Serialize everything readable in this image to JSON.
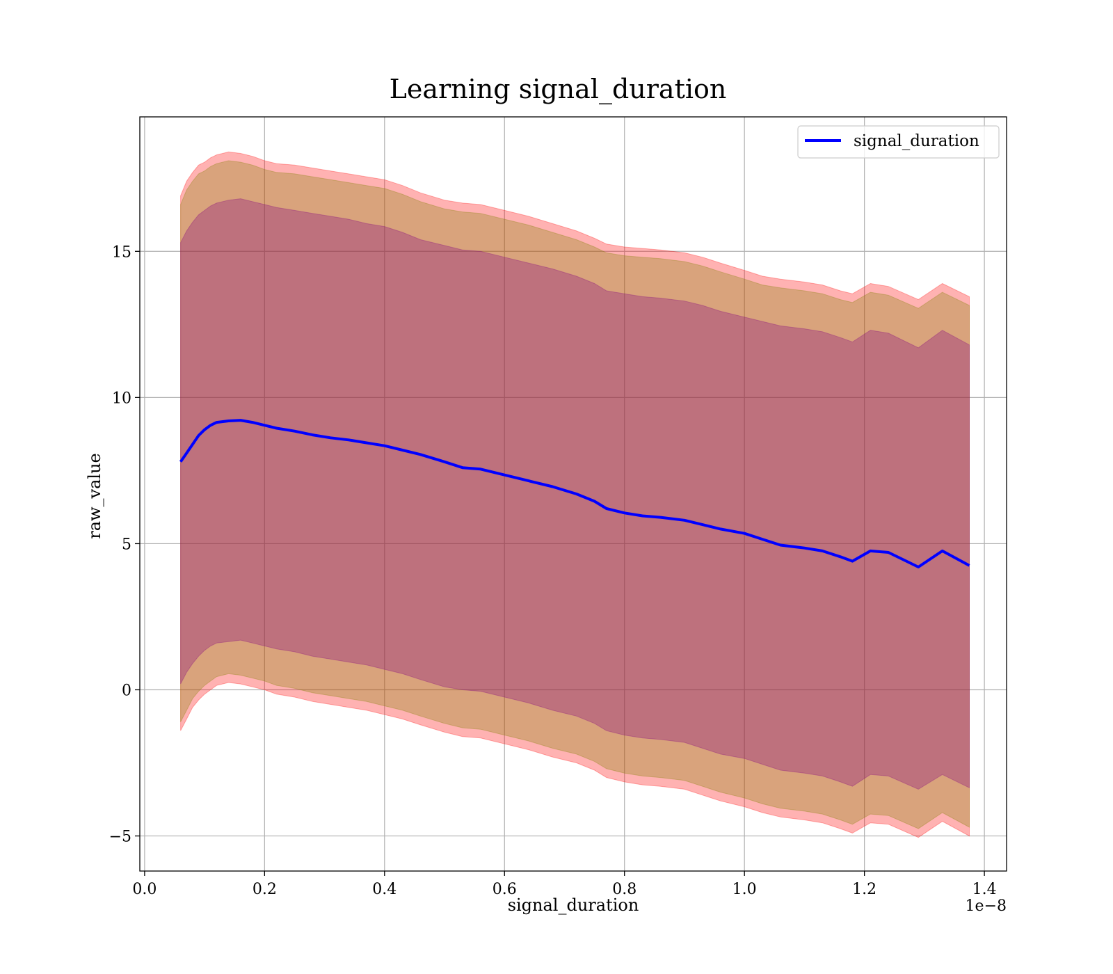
{
  "chart_data": {
    "type": "area",
    "title": "Learning signal_duration",
    "xlabel": "signal_duration",
    "ylabel": "raw_value",
    "x_offset_label": "1e−8",
    "xlim": [
      -0.008,
      1.437
    ],
    "ylim": [
      -6.2,
      19.6
    ],
    "grid": true,
    "legend_position": "top-right",
    "x_ticks": [
      {
        "value": 0.0,
        "label": "0.0"
      },
      {
        "value": 0.2,
        "label": "0.2"
      },
      {
        "value": 0.4,
        "label": "0.4"
      },
      {
        "value": 0.6,
        "label": "0.6"
      },
      {
        "value": 0.8,
        "label": "0.8"
      },
      {
        "value": 1.0,
        "label": "1.0"
      },
      {
        "value": 1.2,
        "label": "1.2"
      },
      {
        "value": 1.4,
        "label": "1.4"
      }
    ],
    "y_ticks": [
      {
        "value": -5,
        "label": "−5"
      },
      {
        "value": 0,
        "label": "0"
      },
      {
        "value": 5,
        "label": "5"
      },
      {
        "value": 10,
        "label": "10"
      },
      {
        "value": 15,
        "label": "15"
      }
    ],
    "x": [
      0.06,
      0.07,
      0.08,
      0.09,
      0.1,
      0.11,
      0.12,
      0.14,
      0.16,
      0.18,
      0.2,
      0.22,
      0.25,
      0.28,
      0.31,
      0.34,
      0.37,
      0.4,
      0.43,
      0.46,
      0.5,
      0.53,
      0.56,
      0.6,
      0.64,
      0.68,
      0.72,
      0.75,
      0.77,
      0.8,
      0.83,
      0.86,
      0.9,
      0.93,
      0.96,
      1.0,
      1.03,
      1.06,
      1.1,
      1.13,
      1.16,
      1.18,
      1.21,
      1.24,
      1.29,
      1.33,
      1.375
    ],
    "series": [
      {
        "name": "signal_duration",
        "color": "#0000ff",
        "values": [
          7.8,
          8.1,
          8.4,
          8.7,
          8.9,
          9.05,
          9.15,
          9.2,
          9.22,
          9.15,
          9.05,
          8.95,
          8.85,
          8.72,
          8.62,
          8.55,
          8.45,
          8.35,
          8.2,
          8.05,
          7.8,
          7.6,
          7.55,
          7.35,
          7.15,
          6.95,
          6.7,
          6.45,
          6.2,
          6.05,
          5.95,
          5.9,
          5.8,
          5.65,
          5.5,
          5.35,
          5.15,
          4.95,
          4.85,
          4.75,
          4.55,
          4.4,
          4.75,
          4.7,
          4.2,
          4.75,
          4.25
        ]
      }
    ],
    "bands": [
      {
        "color": "#ff0000",
        "opacity": 0.3,
        "upper": [
          16.9,
          17.4,
          17.7,
          17.95,
          18.05,
          18.2,
          18.3,
          18.4,
          18.35,
          18.25,
          18.1,
          18.0,
          17.95,
          17.85,
          17.75,
          17.65,
          17.55,
          17.45,
          17.25,
          17.0,
          16.75,
          16.65,
          16.6,
          16.4,
          16.2,
          15.95,
          15.7,
          15.45,
          15.25,
          15.15,
          15.1,
          15.05,
          14.95,
          14.8,
          14.6,
          14.35,
          14.15,
          14.05,
          13.95,
          13.85,
          13.65,
          13.55,
          13.9,
          13.8,
          13.35,
          13.9,
          13.45
        ],
        "lower": [
          -1.4,
          -1.0,
          -0.6,
          -0.35,
          -0.15,
          0.0,
          0.15,
          0.25,
          0.2,
          0.1,
          0.0,
          -0.15,
          -0.25,
          -0.4,
          -0.5,
          -0.6,
          -0.7,
          -0.85,
          -1.0,
          -1.2,
          -1.45,
          -1.6,
          -1.65,
          -1.85,
          -2.05,
          -2.3,
          -2.5,
          -2.75,
          -3.0,
          -3.15,
          -3.25,
          -3.3,
          -3.4,
          -3.6,
          -3.8,
          -4.0,
          -4.2,
          -4.35,
          -4.45,
          -4.55,
          -4.75,
          -4.9,
          -4.55,
          -4.6,
          -5.05,
          -4.5,
          -5.0
        ]
      },
      {
        "color": "#808000",
        "opacity": 0.3,
        "upper": [
          16.6,
          17.1,
          17.4,
          17.65,
          17.75,
          17.9,
          18.0,
          18.1,
          18.05,
          17.95,
          17.8,
          17.7,
          17.65,
          17.55,
          17.45,
          17.35,
          17.25,
          17.15,
          16.95,
          16.7,
          16.45,
          16.35,
          16.3,
          16.1,
          15.9,
          15.65,
          15.4,
          15.15,
          14.95,
          14.85,
          14.8,
          14.75,
          14.65,
          14.5,
          14.3,
          14.05,
          13.85,
          13.75,
          13.65,
          13.55,
          13.35,
          13.25,
          13.6,
          13.5,
          13.05,
          13.6,
          13.15
        ],
        "lower": [
          -1.1,
          -0.7,
          -0.3,
          -0.05,
          0.15,
          0.3,
          0.45,
          0.55,
          0.5,
          0.4,
          0.3,
          0.15,
          0.05,
          -0.1,
          -0.2,
          -0.3,
          -0.4,
          -0.55,
          -0.7,
          -0.9,
          -1.15,
          -1.3,
          -1.35,
          -1.55,
          -1.75,
          -2.0,
          -2.2,
          -2.45,
          -2.7,
          -2.85,
          -2.95,
          -3.0,
          -3.1,
          -3.3,
          -3.5,
          -3.7,
          -3.9,
          -4.05,
          -4.15,
          -4.25,
          -4.45,
          -4.6,
          -4.25,
          -4.3,
          -4.75,
          -4.2,
          -4.7
        ]
      },
      {
        "color": "#800080",
        "opacity": 0.3,
        "upper": [
          15.3,
          15.7,
          16.0,
          16.25,
          16.4,
          16.55,
          16.65,
          16.75,
          16.8,
          16.7,
          16.6,
          16.5,
          16.4,
          16.3,
          16.2,
          16.1,
          15.95,
          15.85,
          15.65,
          15.4,
          15.2,
          15.05,
          15.0,
          14.8,
          14.6,
          14.4,
          14.15,
          13.9,
          13.65,
          13.55,
          13.45,
          13.4,
          13.3,
          13.15,
          12.95,
          12.75,
          12.6,
          12.45,
          12.35,
          12.25,
          12.05,
          11.9,
          12.3,
          12.2,
          11.7,
          12.3,
          11.8
        ],
        "lower": [
          0.2,
          0.6,
          0.9,
          1.15,
          1.35,
          1.5,
          1.6,
          1.65,
          1.7,
          1.6,
          1.5,
          1.4,
          1.3,
          1.15,
          1.05,
          0.95,
          0.85,
          0.7,
          0.55,
          0.35,
          0.1,
          0.0,
          -0.05,
          -0.25,
          -0.45,
          -0.7,
          -0.9,
          -1.15,
          -1.4,
          -1.55,
          -1.65,
          -1.7,
          -1.8,
          -2.0,
          -2.2,
          -2.35,
          -2.55,
          -2.75,
          -2.85,
          -2.95,
          -3.15,
          -3.3,
          -2.9,
          -2.95,
          -3.4,
          -2.9,
          -3.35
        ]
      }
    ]
  }
}
